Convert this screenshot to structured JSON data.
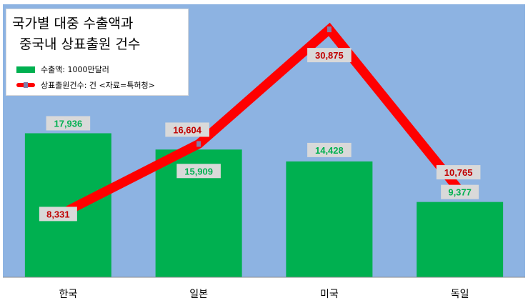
{
  "colors": {
    "plot_bg": "#8db3e2",
    "bar": "#00b050",
    "line": "#ff0000",
    "label_bg": "#d9d9d9"
  },
  "title_line1": "국가별 대중 수출액과",
  "title_line2": "중국내 상표출원 건수",
  "chart_data": {
    "type": "bar+line",
    "categories": [
      "한국",
      "일본",
      "미국",
      "독일"
    ],
    "series": [
      {
        "name": "수출액: 1000만달러",
        "type": "bar",
        "values": [
          17936,
          15909,
          14428,
          9377
        ],
        "labels": [
          "17,936",
          "15,909",
          "14,428",
          "9,377"
        ]
      },
      {
        "name": "상표출원건수: 건 <자료=특허청>",
        "type": "line",
        "values": [
          8331,
          16604,
          30875,
          10765
        ],
        "labels": [
          "8,331",
          "16,604",
          "30,875",
          "10,765"
        ]
      }
    ],
    "ylim": [
      0,
      34000
    ],
    "grid": false,
    "legend_position": "top-left"
  }
}
